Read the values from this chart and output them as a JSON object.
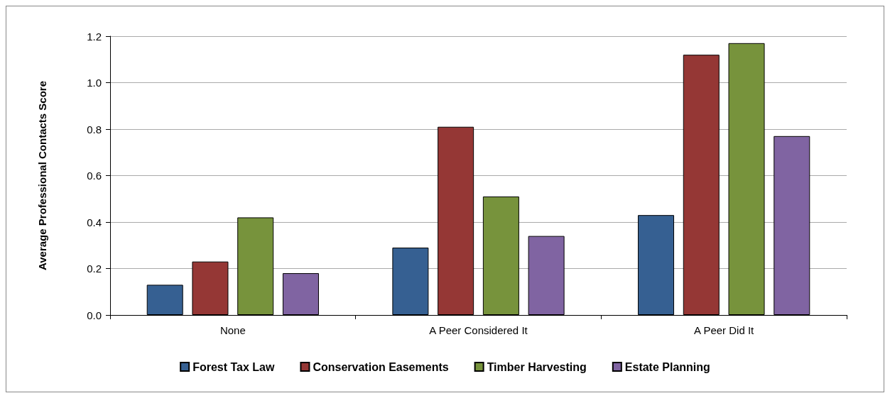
{
  "chart_data": {
    "type": "bar",
    "ylabel": "Average Professional Contacts Score",
    "categories": [
      "None",
      "A Peer Considered It",
      "A Peer Did It"
    ],
    "series": [
      {
        "name": "Forest Tax Law",
        "color": "#366092",
        "values": [
          0.13,
          0.29,
          0.43
        ]
      },
      {
        "name": "Conservation Easements",
        "color": "#953735",
        "values": [
          0.23,
          0.81,
          1.12
        ]
      },
      {
        "name": "Timber Harvesting",
        "color": "#77933c",
        "values": [
          0.42,
          0.51,
          1.17
        ]
      },
      {
        "name": "Estate Planning",
        "color": "#8064a2",
        "values": [
          0.18,
          0.34,
          0.77
        ]
      }
    ],
    "ylim": [
      0,
      1.2
    ],
    "yticks": [
      {
        "value": 0,
        "label": "0.0"
      },
      0.2,
      0.4,
      0.6,
      0.8,
      {
        "value": 1,
        "label": "1.0"
      },
      1.2
    ],
    "grid": "y",
    "legend": "bottom"
  }
}
